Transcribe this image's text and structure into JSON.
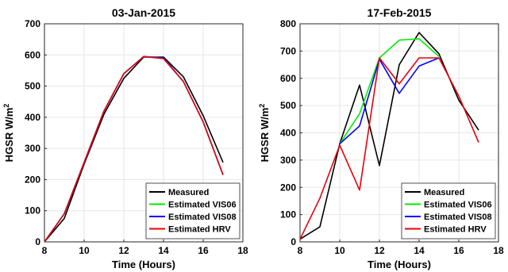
{
  "chart_data": [
    {
      "type": "line",
      "title": "03-Jan-2015",
      "xlabel": "Time (Hours)",
      "ylabel": "HGSR W/m",
      "ylabel_sup": "2",
      "xlim": [
        8,
        18
      ],
      "ylim": [
        0,
        700
      ],
      "xticks": [
        "8",
        "10",
        "12",
        "14",
        "16",
        "18"
      ],
      "yticks": [
        "0",
        "100",
        "200",
        "300",
        "400",
        "500",
        "600",
        "700"
      ],
      "grid": true,
      "legend": "bottom-right",
      "series": [
        {
          "name": "Measured",
          "color": "#000000",
          "x": [
            8,
            9,
            10,
            11,
            12,
            13,
            14,
            15,
            16,
            17
          ],
          "y": [
            0,
            75,
            250,
            410,
            525,
            593,
            593,
            530,
            405,
            255
          ]
        },
        {
          "name": "Estimated VIS06",
          "color": "#00ee00",
          "x": [
            8,
            9,
            10,
            11,
            12,
            13,
            14,
            15,
            16,
            17
          ],
          "y": [
            0,
            90,
            255,
            420,
            540,
            595,
            590,
            515,
            385,
            215
          ]
        },
        {
          "name": "Estimated VIS08",
          "color": "#0000ff",
          "x": [
            8,
            9,
            10,
            11,
            12,
            13,
            14,
            15,
            16,
            17
          ],
          "y": [
            0,
            90,
            255,
            420,
            540,
            595,
            590,
            515,
            385,
            215
          ]
        },
        {
          "name": "Estimated HRV",
          "color": "#e8000b",
          "x": [
            8,
            9,
            10,
            11,
            12,
            13,
            14,
            15,
            16,
            17
          ],
          "y": [
            0,
            90,
            255,
            420,
            540,
            595,
            588,
            515,
            385,
            215
          ]
        }
      ]
    },
    {
      "type": "line",
      "title": "17-Feb-2015",
      "xlabel": "Time (Hours)",
      "ylabel": "HGSR W/m",
      "ylabel_sup": "2",
      "xlim": [
        8,
        18
      ],
      "ylim": [
        0,
        800
      ],
      "xticks": [
        "8",
        "10",
        "12",
        "14",
        "16",
        "18"
      ],
      "yticks": [
        "0",
        "100",
        "200",
        "300",
        "400",
        "500",
        "600",
        "700",
        "800"
      ],
      "grid": true,
      "legend": "bottom-right",
      "series": [
        {
          "name": "Measured",
          "color": "#000000",
          "x": [
            8,
            9,
            10,
            11,
            12,
            13,
            14,
            15,
            16,
            17
          ],
          "y": [
            10,
            55,
            360,
            575,
            280,
            650,
            768,
            690,
            520,
            410
          ]
        },
        {
          "name": "Estimated VIS06",
          "color": "#00ee00",
          "x": [
            10,
            11,
            12,
            13,
            14,
            15
          ],
          "y": [
            360,
            470,
            675,
            740,
            745,
            680
          ]
        },
        {
          "name": "Estimated VIS08",
          "color": "#0000ff",
          "x": [
            10,
            11,
            12,
            13,
            14,
            15
          ],
          "y": [
            360,
            425,
            670,
            545,
            645,
            675
          ]
        },
        {
          "name": "Estimated HRV",
          "color": "#e8000b",
          "x": [
            8,
            9,
            10,
            11,
            12,
            13,
            14,
            15,
            16,
            17
          ],
          "y": [
            10,
            160,
            355,
            190,
            675,
            580,
            675,
            675,
            535,
            365
          ]
        }
      ]
    }
  ]
}
